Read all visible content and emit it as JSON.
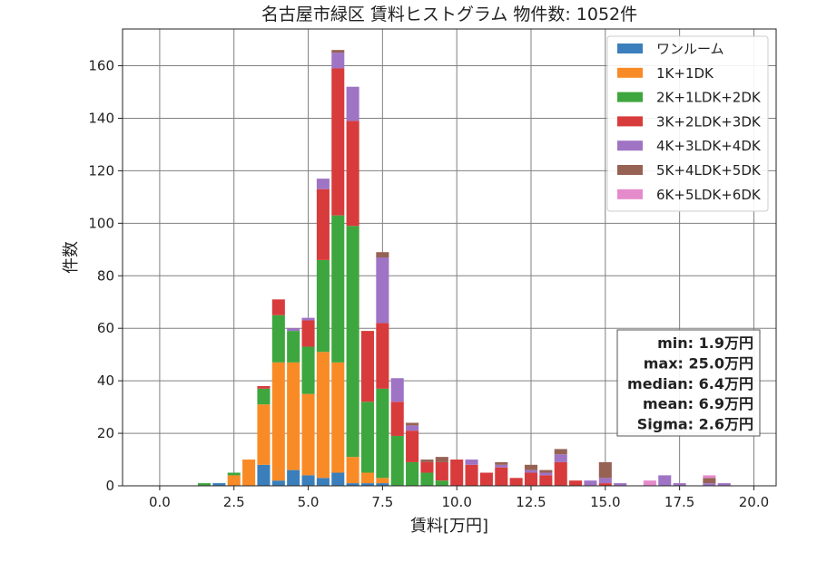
{
  "chart_data": {
    "type": "bar",
    "title": "名古屋市緑区 賃料ヒストグラム  物件数: 1052件",
    "xlabel": "賃料[万円]",
    "ylabel": "件数",
    "xlim": [
      -1.25,
      20.75
    ],
    "ylim": [
      0,
      174
    ],
    "xticks": [
      "0.0",
      "2.5",
      "5.0",
      "7.5",
      "10.0",
      "12.5",
      "15.0",
      "17.5",
      "20.0"
    ],
    "yticks": [
      "0",
      "20",
      "40",
      "60",
      "80",
      "100",
      "120",
      "140",
      "160"
    ],
    "grid": true,
    "legend_position": "top-right",
    "bin_width": 0.5,
    "bin_starts": [
      1.25,
      1.75,
      2.25,
      2.75,
      3.25,
      3.75,
      4.25,
      4.75,
      5.25,
      5.75,
      6.25,
      6.75,
      7.25,
      7.75,
      8.25,
      8.75,
      9.25,
      9.75,
      10.25,
      10.75,
      11.25,
      11.75,
      12.25,
      12.75,
      13.25,
      13.75,
      14.25,
      14.75,
      15.25,
      15.75,
      16.25,
      16.75,
      17.25,
      17.75,
      18.25,
      18.75
    ],
    "series": [
      {
        "name": "ワンルーム",
        "color": "#3a7fbb",
        "values": [
          0,
          1,
          0,
          0,
          8,
          2,
          6,
          4,
          3,
          5,
          1,
          1,
          1,
          0,
          0,
          0,
          0,
          0,
          0,
          0,
          0,
          0,
          0,
          0,
          0,
          0,
          0,
          0,
          0,
          0,
          0,
          0,
          0,
          0,
          0,
          0
        ]
      },
      {
        "name": "1K+1DK",
        "color": "#f98b26",
        "values": [
          0,
          0,
          4,
          10,
          23,
          45,
          41,
          31,
          48,
          42,
          10,
          4,
          2,
          0,
          0,
          0,
          0,
          0,
          0,
          0,
          0,
          0,
          0,
          0,
          0,
          0,
          0,
          0,
          0,
          0,
          0,
          0,
          0,
          0,
          0,
          0
        ]
      },
      {
        "name": "2K+1LDK+2DK",
        "color": "#3ea63e",
        "values": [
          1,
          0,
          1,
          0,
          6,
          18,
          12,
          18,
          35,
          56,
          88,
          27,
          34,
          19,
          9,
          5,
          2,
          0,
          0,
          0,
          0,
          0,
          0,
          0,
          0,
          0,
          0,
          0,
          0,
          0,
          0,
          0,
          0,
          0,
          0,
          0
        ]
      },
      {
        "name": "3K+2LDK+3DK",
        "color": "#d83b3b",
        "values": [
          0,
          0,
          0,
          0,
          1,
          6,
          0,
          10,
          27,
          56,
          40,
          27,
          25,
          13,
          12,
          4,
          7,
          10,
          8,
          5,
          7,
          3,
          5,
          4,
          9,
          2,
          0,
          1,
          0,
          0,
          0,
          0,
          0,
          0,
          0,
          0
        ]
      },
      {
        "name": "4K+3LDK+4DK",
        "color": "#9f74c4",
        "values": [
          0,
          0,
          0,
          0,
          0,
          0,
          1,
          1,
          4,
          6,
          13,
          0,
          25,
          9,
          2,
          0,
          0,
          0,
          2,
          0,
          1,
          0,
          1,
          1,
          3,
          0,
          2,
          2,
          1,
          0,
          0,
          4,
          1,
          0,
          1,
          1
        ]
      },
      {
        "name": "5K+4LDK+5DK",
        "color": "#966254",
        "values": [
          0,
          0,
          0,
          0,
          0,
          0,
          0,
          0,
          0,
          1,
          0,
          0,
          2,
          0,
          1,
          1,
          2,
          0,
          0,
          0,
          1,
          0,
          2,
          1,
          2,
          0,
          0,
          6,
          0,
          0,
          0,
          0,
          0,
          0,
          2,
          0
        ]
      },
      {
        "name": "6K+5LDK+6DK",
        "color": "#e58bcb",
        "values": [
          0,
          0,
          0,
          0,
          0,
          0,
          0,
          0,
          0,
          0,
          0,
          0,
          0,
          0,
          0,
          0,
          0,
          0,
          0,
          0,
          0,
          0,
          0,
          0,
          0,
          0,
          0,
          0,
          0,
          0,
          2,
          0,
          0,
          0,
          1,
          0
        ]
      }
    ],
    "annotation": [
      "min: 1.9万円",
      "max: 25.0万円",
      "median: 6.4万円",
      "mean: 6.9万円",
      "Sigma: 2.6万円"
    ]
  }
}
